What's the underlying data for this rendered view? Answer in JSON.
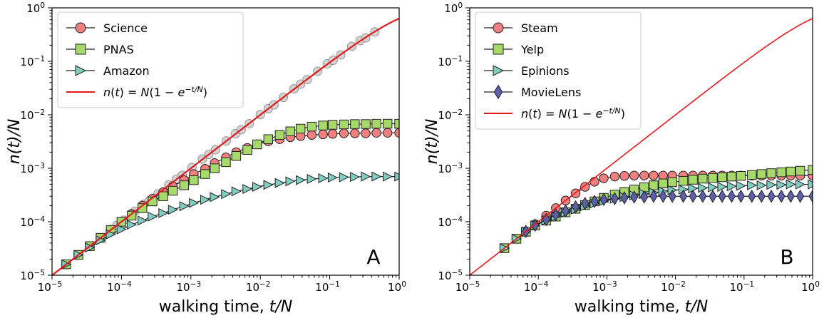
{
  "chart_data": [
    {
      "type": "scatter",
      "panel_label": "A",
      "xscale": "log",
      "yscale": "log",
      "xlim": [
        1e-05,
        1
      ],
      "ylim": [
        1e-05,
        1
      ],
      "x_ticks": [
        1e-05,
        0.0001,
        0.001,
        0.01,
        0.1,
        1
      ],
      "y_ticks": [
        1e-05,
        0.0001,
        0.001,
        0.01,
        0.1,
        1
      ],
      "tick_base": "10",
      "x_tick_exponents": [
        "−5",
        "−4",
        "−3",
        "−2",
        "−1",
        "0"
      ],
      "y_tick_exponents": [
        "−5",
        "−4",
        "−3",
        "−2",
        "−1",
        "0"
      ],
      "xlabel_text": "walking time, ",
      "xlabel_math": "t/N",
      "ylabel": "n(t)/N",
      "legend_position": "upper-left",
      "series": [
        {
          "name": "Science",
          "marker": "circle",
          "color": "#f08080",
          "x": [
            1.6e-05,
            2.4e-05,
            3.5e-05,
            5e-05,
            7e-05,
            0.0001,
            0.00014,
            0.0002,
            0.00028,
            0.0004,
            0.00055,
            0.0008,
            0.0011,
            0.0016,
            0.0022,
            0.0032,
            0.0045,
            0.0065,
            0.009,
            0.013,
            0.019,
            0.027,
            0.038,
            0.055,
            0.08,
            0.11,
            0.16,
            0.23,
            0.33,
            0.47,
            0.68,
            1.0
          ],
          "y": [
            1.6e-05,
            2.4e-05,
            3.5e-05,
            5e-05,
            7e-05,
            0.0001,
            0.00014,
            0.0002,
            0.00027,
            0.00036,
            0.00046,
            0.0006,
            0.00078,
            0.00098,
            0.00125,
            0.0016,
            0.002,
            0.0024,
            0.0028,
            0.0032,
            0.0035,
            0.0038,
            0.004,
            0.0042,
            0.0043,
            0.0044,
            0.0045,
            0.0045,
            0.0045,
            0.0046,
            0.0046,
            0.0046
          ]
        },
        {
          "name": "PNAS",
          "marker": "square",
          "color": "#a6d96a",
          "x": [
            1.6e-05,
            2.4e-05,
            3.5e-05,
            5e-05,
            7e-05,
            0.0001,
            0.00014,
            0.0002,
            0.00028,
            0.0004,
            0.00055,
            0.0008,
            0.0011,
            0.0016,
            0.0022,
            0.0032,
            0.0045,
            0.0065,
            0.009,
            0.013,
            0.019,
            0.027,
            0.038,
            0.055,
            0.08,
            0.11,
            0.16,
            0.23,
            0.33,
            0.47,
            0.68,
            1.0
          ],
          "y": [
            1.6e-05,
            2.4e-05,
            3.5e-05,
            5e-05,
            7e-05,
            0.0001,
            0.00013,
            0.00018,
            0.00024,
            0.0003,
            0.00038,
            0.00048,
            0.0006,
            0.00078,
            0.001,
            0.0013,
            0.0017,
            0.0022,
            0.0028,
            0.0035,
            0.0042,
            0.0049,
            0.0055,
            0.006,
            0.0063,
            0.0065,
            0.0066,
            0.0067,
            0.0067,
            0.0068,
            0.0068,
            0.0068
          ]
        },
        {
          "name": "Amazon",
          "marker": "triangle-right",
          "color": "#80cdc1",
          "x": [
            1.6e-05,
            2.4e-05,
            3.5e-05,
            5e-05,
            7e-05,
            0.0001,
            0.00014,
            0.0002,
            0.00028,
            0.0004,
            0.00055,
            0.0008,
            0.0011,
            0.0016,
            0.0022,
            0.0032,
            0.0045,
            0.0065,
            0.009,
            0.013,
            0.019,
            0.027,
            0.038,
            0.055,
            0.08,
            0.11,
            0.16,
            0.23,
            0.33,
            0.47,
            0.68,
            1.0
          ],
          "y": [
            1.6e-05,
            2.4e-05,
            3.3e-05,
            4.5e-05,
            5.8e-05,
            7.2e-05,
            8.8e-05,
            0.000105,
            0.000125,
            0.000145,
            0.000168,
            0.000195,
            0.000225,
            0.000258,
            0.00029,
            0.00033,
            0.00037,
            0.00041,
            0.00045,
            0.00049,
            0.00053,
            0.00057,
            0.0006,
            0.00063,
            0.00065,
            0.00067,
            0.00068,
            0.00069,
            0.0007,
            0.0007,
            0.0007,
            0.0007
          ]
        },
        {
          "name": "n(t)=N(1−e^{−t/N})",
          "marker": "line",
          "color": "#e31a1c",
          "function": "1-exp(-x)"
        }
      ]
    },
    {
      "type": "scatter",
      "panel_label": "B",
      "xscale": "log",
      "yscale": "log",
      "xlim": [
        1e-05,
        1
      ],
      "ylim": [
        1e-05,
        1
      ],
      "x_ticks": [
        1e-05,
        0.0001,
        0.001,
        0.01,
        0.1,
        1
      ],
      "y_ticks": [
        1e-05,
        0.0001,
        0.001,
        0.01,
        0.1,
        1
      ],
      "tick_base": "10",
      "x_tick_exponents": [
        "−5",
        "−4",
        "−3",
        "−2",
        "−1",
        "0"
      ],
      "y_tick_exponents": [
        "−5",
        "−4",
        "−3",
        "−2",
        "−1",
        "0"
      ],
      "xlabel_text": "walking time, ",
      "xlabel_math": "t/N",
      "ylabel": "n(t)/N",
      "legend_position": "upper-left",
      "series": [
        {
          "name": "Steam",
          "marker": "circle",
          "color": "#f08080",
          "x": [
            3.2e-05,
            4.8e-05,
            6.6e-05,
            9e-05,
            0.00013,
            0.00018,
            0.00025,
            0.00035,
            0.00048,
            0.00066,
            0.0009,
            0.0013,
            0.0018,
            0.0025,
            0.0035,
            0.0048,
            0.0066,
            0.009,
            0.013,
            0.018,
            0.025,
            0.035,
            0.048,
            0.066,
            0.09,
            0.13,
            0.18,
            0.25,
            0.35,
            0.48,
            0.66,
            1.0
          ],
          "y": [
            3.2e-05,
            4.8e-05,
            6.6e-05,
            9e-05,
            0.00013,
            0.00018,
            0.00025,
            0.00034,
            0.00045,
            0.00056,
            0.00065,
            0.0007,
            0.00072,
            0.00073,
            0.00073,
            0.00073,
            0.00073,
            0.00073,
            0.00073,
            0.00073,
            0.00073,
            0.00073,
            0.00073,
            0.00073,
            0.00073,
            0.00073,
            0.00073,
            0.00073,
            0.00073,
            0.00073,
            0.00073,
            0.00073
          ]
        },
        {
          "name": "Yelp",
          "marker": "square",
          "color": "#a6d96a",
          "x": [
            3.2e-05,
            4.8e-05,
            6.6e-05,
            9e-05,
            0.00013,
            0.00018,
            0.00025,
            0.00035,
            0.00048,
            0.00066,
            0.0009,
            0.0013,
            0.0018,
            0.0025,
            0.0035,
            0.0048,
            0.0066,
            0.009,
            0.013,
            0.018,
            0.025,
            0.035,
            0.048,
            0.066,
            0.09,
            0.13,
            0.18,
            0.25,
            0.35,
            0.48,
            0.66,
            1.0
          ],
          "y": [
            3.2e-05,
            4.8e-05,
            6.5e-05,
            8.5e-05,
            0.000105,
            0.000125,
            0.00015,
            0.000175,
            0.000205,
            0.00024,
            0.00028,
            0.00032,
            0.00036,
            0.0004,
            0.00044,
            0.00048,
            0.00052,
            0.00055,
            0.00058,
            0.00061,
            0.00064,
            0.00066,
            0.00068,
            0.0007,
            0.00072,
            0.00075,
            0.00078,
            0.00081,
            0.00084,
            0.00087,
            0.0009,
            0.00093
          ]
        },
        {
          "name": "Epinions",
          "marker": "triangle-right",
          "color": "#80cdc1",
          "x": [
            3.2e-05,
            4.8e-05,
            6.6e-05,
            9e-05,
            0.00013,
            0.00018,
            0.00025,
            0.00035,
            0.00048,
            0.00066,
            0.0009,
            0.0013,
            0.0018,
            0.0025,
            0.0035,
            0.0048,
            0.0066,
            0.009,
            0.013,
            0.018,
            0.025,
            0.035,
            0.048,
            0.066,
            0.09,
            0.13,
            0.18,
            0.25,
            0.35,
            0.48,
            0.66,
            1.0
          ],
          "y": [
            3.2e-05,
            4.8e-05,
            6.5e-05,
            8.5e-05,
            0.000105,
            0.000125,
            0.000148,
            0.00017,
            0.000195,
            0.00022,
            0.000245,
            0.00027,
            0.00029,
            0.00031,
            0.00033,
            0.00035,
            0.00037,
            0.00039,
            0.0004,
            0.00042,
            0.00043,
            0.00044,
            0.00045,
            0.00046,
            0.00047,
            0.00048,
            0.00048,
            0.00049,
            0.00049,
            0.0005,
            0.0005,
            0.0005
          ]
        },
        {
          "name": "MovieLens",
          "marker": "diamond",
          "color": "#5d5fa8",
          "x": [
            6.6e-05,
            9e-05,
            0.00013,
            0.00018,
            0.00025,
            0.00035,
            0.00048,
            0.00066,
            0.0009,
            0.0013,
            0.0018,
            0.0025,
            0.0035,
            0.0048,
            0.0066,
            0.009,
            0.013,
            0.018,
            0.025,
            0.035,
            0.048,
            0.066,
            0.09,
            0.13,
            0.18,
            0.25,
            0.35,
            0.48,
            0.66,
            1.0
          ],
          "y": [
            6.6e-05,
            8.6e-05,
            0.00011,
            0.000135,
            0.00016,
            0.00019,
            0.00022,
            0.00024,
            0.00026,
            0.00027,
            0.00028,
            0.00029,
            0.00029,
            0.0003,
            0.0003,
            0.0003,
            0.0003,
            0.0003,
            0.0003,
            0.0003,
            0.0003,
            0.0003,
            0.0003,
            0.0003,
            0.0003,
            0.0003,
            0.0003,
            0.0003,
            0.0003,
            0.0003
          ]
        },
        {
          "name": "n(t)=N(1−e^{−t/N})",
          "marker": "line",
          "color": "#e31a1c",
          "function": "1-exp(-x)"
        }
      ]
    }
  ]
}
